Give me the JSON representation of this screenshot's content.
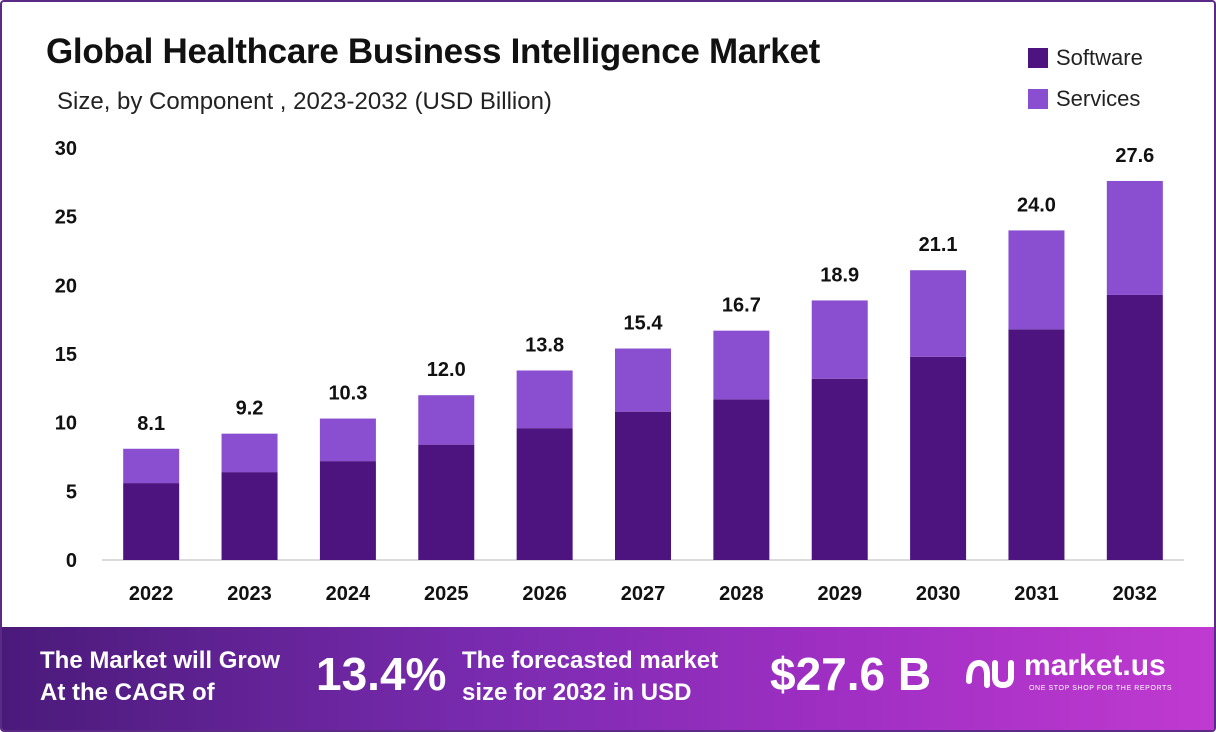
{
  "chart_data": {
    "type": "bar",
    "stacked": true,
    "title": "Global Healthcare Business Intelligence Market",
    "subtitle": "Size, by Component , 2023-2032 (USD Billion)",
    "xlabel": "",
    "ylabel": "",
    "ylim": [
      0,
      30
    ],
    "yticks": [
      0,
      5,
      10,
      15,
      20,
      25,
      30
    ],
    "categories": [
      "2022",
      "2023",
      "2024",
      "2025",
      "2026",
      "2027",
      "2028",
      "2029",
      "2030",
      "2031",
      "2032"
    ],
    "series": [
      {
        "name": "Software",
        "color": "#4d1480",
        "values": [
          5.6,
          6.4,
          7.2,
          8.4,
          9.6,
          10.8,
          11.7,
          13.2,
          14.8,
          16.8,
          19.3
        ]
      },
      {
        "name": "Services",
        "color": "#8a4fd0",
        "values": [
          2.5,
          2.8,
          3.1,
          3.6,
          4.2,
          4.6,
          5.0,
          5.7,
          6.3,
          7.2,
          8.3
        ]
      }
    ],
    "totals": [
      "8.1",
      "9.2",
      "10.3",
      "12.0",
      "13.8",
      "15.4",
      "16.7",
      "18.9",
      "21.1",
      "24.0",
      "27.6"
    ],
    "grid": false,
    "legend_position": "top-right"
  },
  "banner": {
    "cagr_line1": "The Market will Grow",
    "cagr_line2": "At the CAGR of",
    "cagr_value": "13.4%",
    "forecast_line1": "The forecasted market",
    "forecast_line2": "size for 2032 in USD",
    "forecast_value": "$27.6 B",
    "logo_text": "market.us",
    "logo_tagline": "ONE STOP SHOP FOR THE REPORTS"
  }
}
